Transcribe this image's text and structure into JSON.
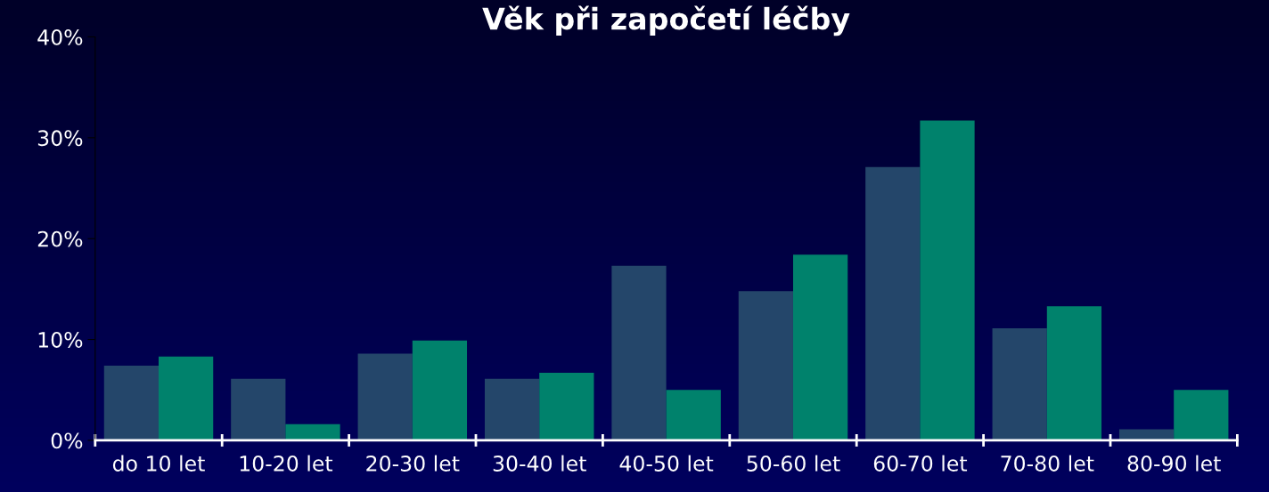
{
  "chart_data": {
    "type": "bar",
    "title": "Věk při započetí léčby",
    "categories": [
      "do 10 let",
      "10-20 let",
      "20-30 let",
      "30-40 let",
      "40-50 let",
      "50-60 let",
      "60-70 let",
      "70-80 let",
      "80-90 let"
    ],
    "series": [
      {
        "color": "#24466a",
        "values": [
          7.4,
          6.1,
          8.6,
          6.1,
          17.3,
          14.8,
          27.1,
          11.1,
          1.1
        ]
      },
      {
        "color": "#00826c",
        "values": [
          8.3,
          1.6,
          9.9,
          6.7,
          5.0,
          18.4,
          31.7,
          13.3,
          5.0
        ]
      }
    ],
    "ylim": [
      0,
      40
    ],
    "yticks": [
      {
        "value": 0,
        "label": "0%"
      },
      {
        "value": 10,
        "label": "10%"
      },
      {
        "value": 20,
        "label": "20%"
      },
      {
        "value": 30,
        "label": "30%"
      },
      {
        "value": 40,
        "label": "40%"
      }
    ],
    "grid": false
  }
}
